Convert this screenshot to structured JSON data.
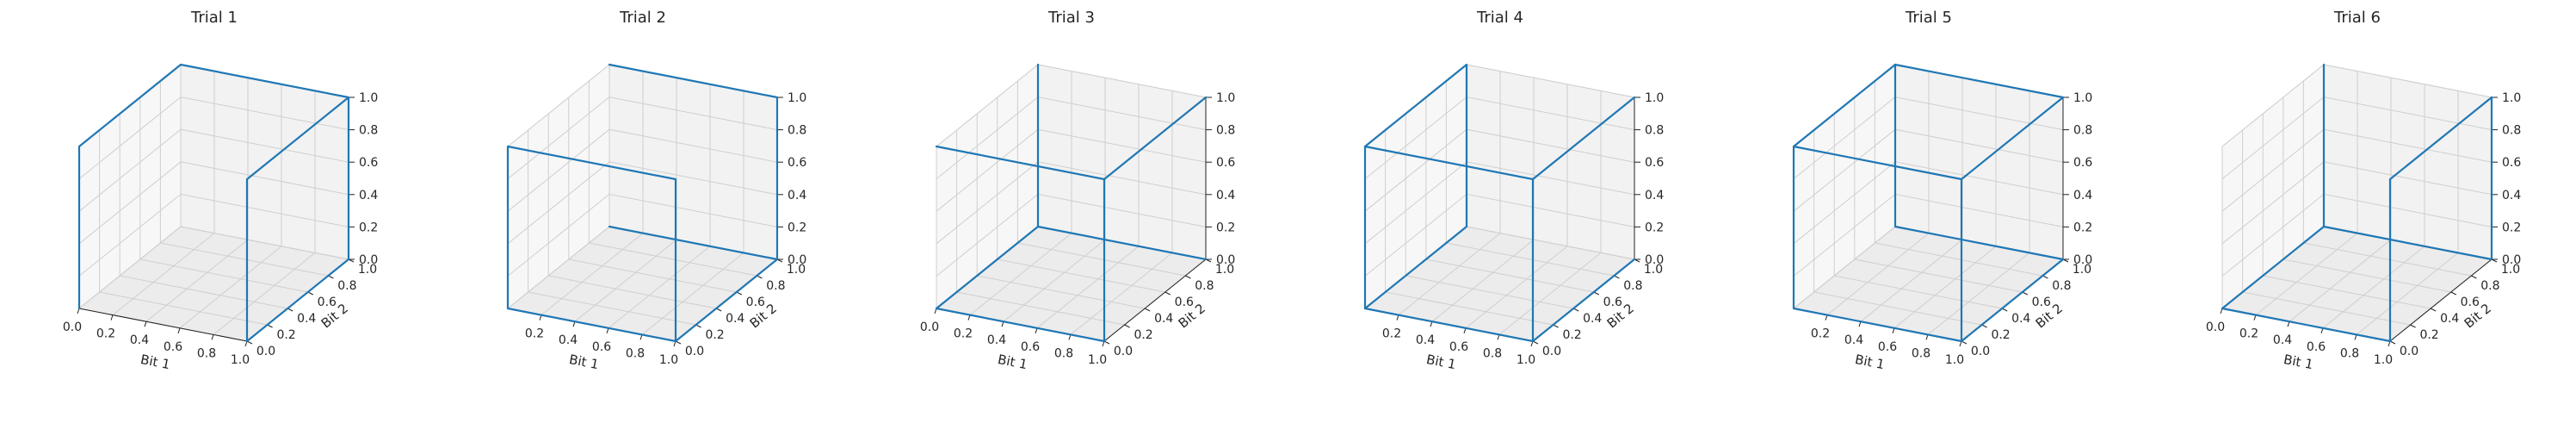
{
  "chart_data": [
    {
      "type": "line3d",
      "title": "Trial 1",
      "xlabel": "Bit 1",
      "ylabel": "Bit 2",
      "zlabel": "",
      "xlim": [
        0,
        1
      ],
      "ylim": [
        0,
        1
      ],
      "zlim": [
        0,
        1
      ],
      "x_ticks": [
        "0.0",
        "0.2",
        "0.4",
        "0.6",
        "0.8",
        "1.0"
      ],
      "y_ticks": [
        "0.0",
        "0.2",
        "0.4",
        "0.6",
        "0.8",
        "1.0"
      ],
      "z_ticks": [
        "0.0",
        "0.2",
        "0.4",
        "0.6",
        "0.8",
        "1.0"
      ],
      "series": [
        {
          "points": [
            [
              0,
              0,
              0
            ],
            [
              0,
              0,
              1
            ],
            [
              0,
              1,
              1
            ],
            [
              1,
              1,
              1
            ],
            [
              1,
              1,
              0
            ],
            [
              1,
              0,
              0
            ],
            [
              1,
              0,
              1
            ],
            [
              1,
              1,
              1
            ]
          ]
        }
      ]
    },
    {
      "type": "line3d",
      "title": "Trial 2",
      "xlabel": "Bit 1",
      "ylabel": "Bit 2",
      "zlabel": "",
      "xlim": [
        0,
        1
      ],
      "ylim": [
        0,
        1
      ],
      "zlim": [
        0,
        1
      ],
      "x_ticks": [
        "0.2",
        "0.4",
        "0.6",
        "0.8",
        "1.0"
      ],
      "y_ticks": [
        "0.0",
        "0.2",
        "0.4",
        "0.6",
        "0.8",
        "1.0"
      ],
      "z_ticks": [
        "0.0",
        "0.2",
        "0.4",
        "0.6",
        "0.8",
        "1.0"
      ],
      "series": [
        {
          "points": [
            [
              0,
              1,
              0
            ],
            [
              1,
              1,
              0
            ],
            [
              1,
              0,
              0
            ],
            [
              1,
              0,
              1
            ],
            [
              0,
              0,
              1
            ],
            [
              0,
              0,
              0
            ],
            [
              1,
              0,
              0
            ]
          ]
        },
        {
          "points": [
            [
              1,
              1,
              0
            ],
            [
              1,
              1,
              1
            ],
            [
              0,
              1,
              1
            ]
          ]
        }
      ]
    },
    {
      "type": "line3d",
      "title": "Trial 3",
      "xlabel": "Bit 1",
      "ylabel": "Bit 2",
      "zlabel": "",
      "xlim": [
        0,
        1
      ],
      "ylim": [
        0,
        1
      ],
      "zlim": [
        0,
        1
      ],
      "x_ticks": [
        "0.0",
        "0.2",
        "0.4",
        "0.6",
        "0.8",
        "1.0"
      ],
      "y_ticks": [
        "0.0",
        "0.2",
        "0.4",
        "0.6",
        "0.8",
        "1.0"
      ],
      "z_ticks": [
        "0.0",
        "0.2",
        "0.4",
        "0.6",
        "0.8",
        "1.0"
      ],
      "series": [
        {
          "points": [
            [
              0,
              1,
              1
            ],
            [
              0,
              1,
              0
            ],
            [
              1,
              1,
              0
            ]
          ]
        },
        {
          "points": [
            [
              0,
              0,
              1
            ],
            [
              1,
              0,
              1
            ],
            [
              1,
              1,
              1
            ]
          ]
        },
        {
          "points": [
            [
              0,
              1,
              0
            ],
            [
              0,
              0,
              0
            ],
            [
              1,
              0,
              0
            ],
            [
              1,
              0,
              1
            ]
          ]
        }
      ]
    },
    {
      "type": "line3d",
      "title": "Trial 4",
      "xlabel": "Bit 1",
      "ylabel": "Bit 2",
      "zlabel": "",
      "xlim": [
        0,
        1
      ],
      "ylim": [
        0,
        1
      ],
      "zlim": [
        0,
        1
      ],
      "x_ticks": [
        "0.2",
        "0.4",
        "0.6",
        "0.8",
        "1.0"
      ],
      "y_ticks": [
        "0.0",
        "0.2",
        "0.4",
        "0.6",
        "0.8",
        "1.0"
      ],
      "z_ticks": [
        "0.0",
        "0.2",
        "0.4",
        "0.6",
        "0.8",
        "1.0"
      ],
      "series": [
        {
          "points": [
            [
              1,
              0,
              0
            ],
            [
              0,
              0,
              0
            ],
            [
              0,
              0,
              1
            ],
            [
              1,
              0,
              1
            ],
            [
              1,
              1,
              1
            ]
          ]
        },
        {
          "points": [
            [
              1,
              0,
              1
            ],
            [
              1,
              0,
              0
            ],
            [
              1,
              1,
              0
            ]
          ]
        },
        {
          "points": [
            [
              0,
              0,
              0
            ],
            [
              0,
              1,
              0
            ],
            [
              0,
              1,
              1
            ],
            [
              0,
              0,
              1
            ]
          ]
        }
      ]
    },
    {
      "type": "line3d",
      "title": "Trial 5",
      "xlabel": "Bit 1",
      "ylabel": "Bit 2",
      "zlabel": "",
      "xlim": [
        0,
        1
      ],
      "ylim": [
        0,
        1
      ],
      "zlim": [
        0,
        1
      ],
      "x_ticks": [
        "0.2",
        "0.4",
        "0.6",
        "0.8",
        "1.0"
      ],
      "y_ticks": [
        "0.0",
        "0.2",
        "0.4",
        "0.6",
        "0.8",
        "1.0"
      ],
      "z_ticks": [
        "0.0",
        "0.2",
        "0.4",
        "0.6",
        "0.8",
        "1.0"
      ],
      "series": [
        {
          "points": [
            [
              1,
              0,
              0
            ],
            [
              0,
              0,
              0
            ],
            [
              0,
              0,
              1
            ],
            [
              0,
              1,
              1
            ],
            [
              1,
              1,
              1
            ],
            [
              1,
              0,
              1
            ],
            [
              0,
              0,
              1
            ]
          ]
        },
        {
          "points": [
            [
              1,
              0,
              1
            ],
            [
              1,
              0,
              0
            ],
            [
              1,
              1,
              0
            ],
            [
              0,
              1,
              0
            ],
            [
              0,
              1,
              1
            ]
          ]
        }
      ]
    },
    {
      "type": "line3d",
      "title": "Trial 6",
      "xlabel": "Bit 1",
      "ylabel": "Bit 2",
      "zlabel": "",
      "xlim": [
        0,
        1
      ],
      "ylim": [
        0,
        1
      ],
      "zlim": [
        0,
        1
      ],
      "x_ticks": [
        "0.0",
        "0.2",
        "0.4",
        "0.6",
        "0.8",
        "1.0"
      ],
      "y_ticks": [
        "0.0",
        "0.2",
        "0.4",
        "0.6",
        "0.8",
        "1.0"
      ],
      "z_ticks": [
        "0.0",
        "0.2",
        "0.4",
        "0.6",
        "0.8",
        "1.0"
      ],
      "series": [
        {
          "points": [
            [
              0,
              1,
              1
            ],
            [
              0,
              1,
              0
            ],
            [
              1,
              1,
              0
            ],
            [
              1,
              1,
              1
            ]
          ]
        },
        {
          "points": [
            [
              0,
              0,
              0
            ],
            [
              1,
              0,
              0
            ],
            [
              1,
              0,
              1
            ],
            [
              1,
              1,
              1
            ]
          ]
        },
        {
          "points": [
            [
              0,
              1,
              0
            ],
            [
              0,
              0,
              0
            ]
          ]
        }
      ]
    }
  ]
}
